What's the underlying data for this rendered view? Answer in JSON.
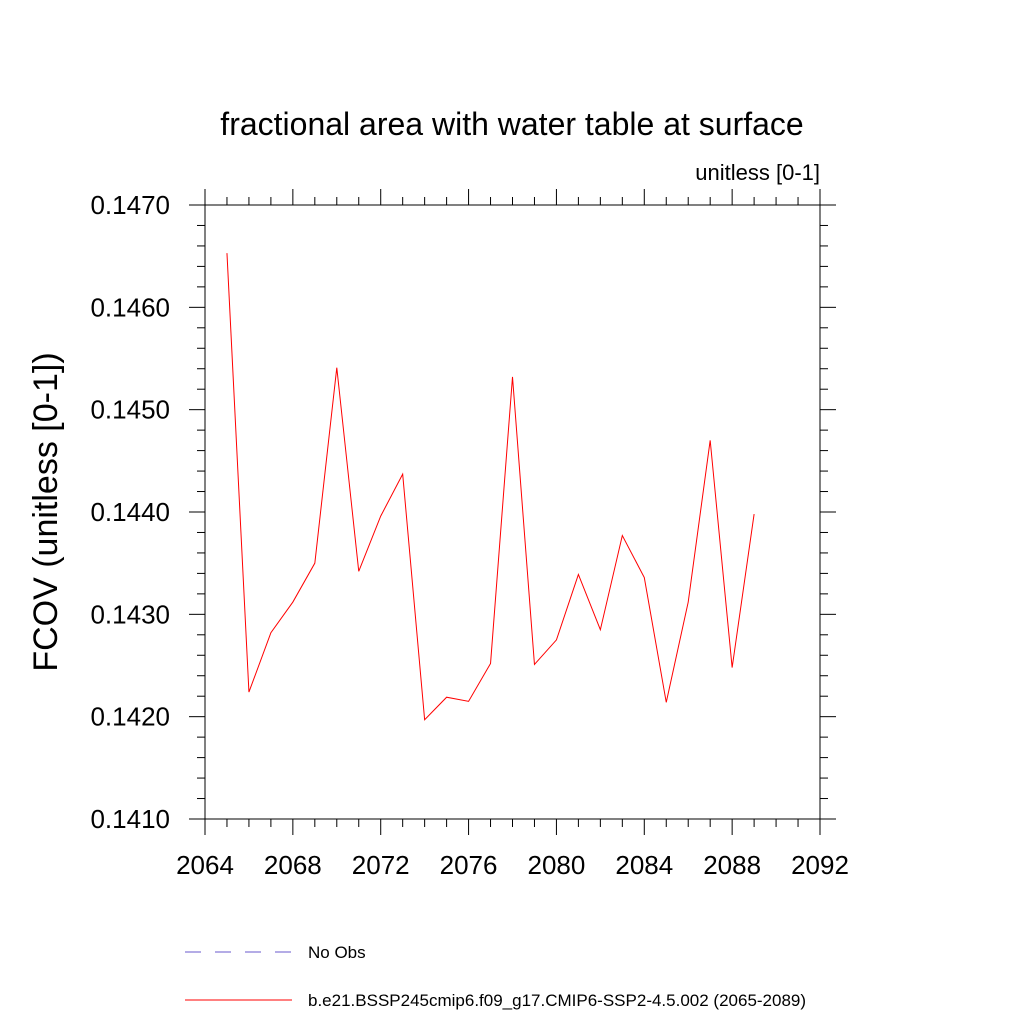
{
  "chart_data": {
    "type": "line",
    "title": "fractional area with water table at surface",
    "subtitle": "unitless [0-1]",
    "xlabel": "",
    "ylabel": "FCOV  (unitless [0-1])",
    "xlim": [
      2064,
      2092
    ],
    "ylim": [
      0.141,
      0.147
    ],
    "x_ticks": [
      "2064",
      "2068",
      "2072",
      "2076",
      "2080",
      "2084",
      "2088",
      "2092"
    ],
    "y_ticks": [
      "0.1410",
      "0.1420",
      "0.1430",
      "0.1440",
      "0.1450",
      "0.1460",
      "0.1470"
    ],
    "grid": false,
    "legend_position": "bottom-left",
    "series": [
      {
        "name": "b.e21.BSSP245cmip6.f09_g17.CMIP6-SSP2-4.5.002 (2065-2089)",
        "color": "#ff0000",
        "style": "solid",
        "x": [
          2065,
          2066,
          2067,
          2068,
          2069,
          2070,
          2071,
          2072,
          2073,
          2074,
          2075,
          2076,
          2077,
          2078,
          2079,
          2080,
          2081,
          2082,
          2083,
          2084,
          2085,
          2086,
          2087,
          2088,
          2089
        ],
        "y": [
          0.14653,
          0.14224,
          0.14282,
          0.14312,
          0.1435,
          0.14541,
          0.14342,
          0.14396,
          0.14437,
          0.14197,
          0.14219,
          0.14215,
          0.14252,
          0.14532,
          0.14251,
          0.14275,
          0.14339,
          0.14285,
          0.14377,
          0.14336,
          0.14214,
          0.14312,
          0.1447,
          0.14248,
          0.14398
        ]
      }
    ],
    "legend": [
      {
        "label": "No Obs",
        "color": "#6a5acd",
        "style": "dashed"
      },
      {
        "label": "b.e21.BSSP245cmip6.f09_g17.CMIP6-SSP2-4.5.002 (2065-2089)",
        "color": "#ff0000",
        "style": "solid"
      }
    ]
  }
}
